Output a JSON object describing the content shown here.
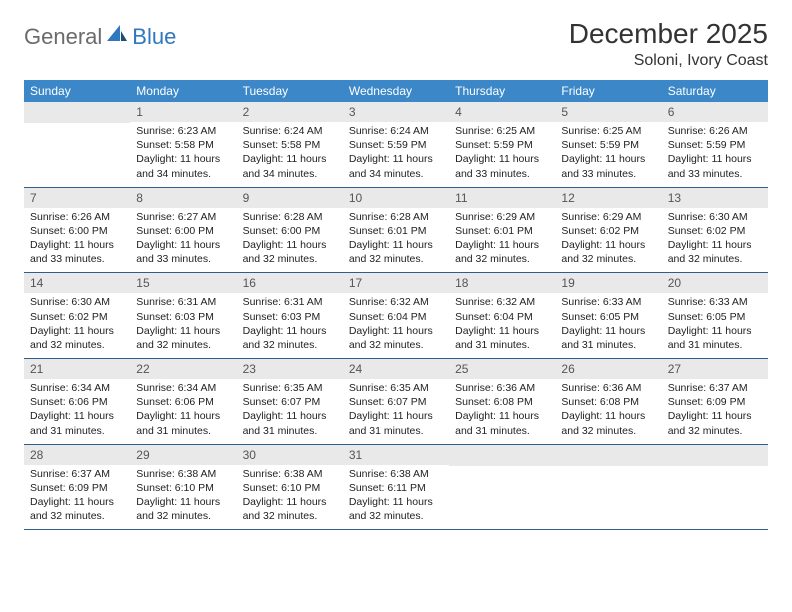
{
  "logo": {
    "part1": "General",
    "part2": "Blue"
  },
  "title": "December 2025",
  "location": "Soloni, Ivory Coast",
  "colors": {
    "header_bg": "#3b87c8",
    "header_text": "#ffffff",
    "daynum_bg": "#e9e9e9",
    "row_border": "#2c5f8d",
    "logo_blue": "#2f78bf"
  },
  "day_headers": [
    "Sunday",
    "Monday",
    "Tuesday",
    "Wednesday",
    "Thursday",
    "Friday",
    "Saturday"
  ],
  "weeks": [
    [
      {
        "n": "",
        "sr": "",
        "ss": "",
        "dl": ""
      },
      {
        "n": "1",
        "sr": "Sunrise: 6:23 AM",
        "ss": "Sunset: 5:58 PM",
        "dl": "Daylight: 11 hours and 34 minutes."
      },
      {
        "n": "2",
        "sr": "Sunrise: 6:24 AM",
        "ss": "Sunset: 5:58 PM",
        "dl": "Daylight: 11 hours and 34 minutes."
      },
      {
        "n": "3",
        "sr": "Sunrise: 6:24 AM",
        "ss": "Sunset: 5:59 PM",
        "dl": "Daylight: 11 hours and 34 minutes."
      },
      {
        "n": "4",
        "sr": "Sunrise: 6:25 AM",
        "ss": "Sunset: 5:59 PM",
        "dl": "Daylight: 11 hours and 33 minutes."
      },
      {
        "n": "5",
        "sr": "Sunrise: 6:25 AM",
        "ss": "Sunset: 5:59 PM",
        "dl": "Daylight: 11 hours and 33 minutes."
      },
      {
        "n": "6",
        "sr": "Sunrise: 6:26 AM",
        "ss": "Sunset: 5:59 PM",
        "dl": "Daylight: 11 hours and 33 minutes."
      }
    ],
    [
      {
        "n": "7",
        "sr": "Sunrise: 6:26 AM",
        "ss": "Sunset: 6:00 PM",
        "dl": "Daylight: 11 hours and 33 minutes."
      },
      {
        "n": "8",
        "sr": "Sunrise: 6:27 AM",
        "ss": "Sunset: 6:00 PM",
        "dl": "Daylight: 11 hours and 33 minutes."
      },
      {
        "n": "9",
        "sr": "Sunrise: 6:28 AM",
        "ss": "Sunset: 6:00 PM",
        "dl": "Daylight: 11 hours and 32 minutes."
      },
      {
        "n": "10",
        "sr": "Sunrise: 6:28 AM",
        "ss": "Sunset: 6:01 PM",
        "dl": "Daylight: 11 hours and 32 minutes."
      },
      {
        "n": "11",
        "sr": "Sunrise: 6:29 AM",
        "ss": "Sunset: 6:01 PM",
        "dl": "Daylight: 11 hours and 32 minutes."
      },
      {
        "n": "12",
        "sr": "Sunrise: 6:29 AM",
        "ss": "Sunset: 6:02 PM",
        "dl": "Daylight: 11 hours and 32 minutes."
      },
      {
        "n": "13",
        "sr": "Sunrise: 6:30 AM",
        "ss": "Sunset: 6:02 PM",
        "dl": "Daylight: 11 hours and 32 minutes."
      }
    ],
    [
      {
        "n": "14",
        "sr": "Sunrise: 6:30 AM",
        "ss": "Sunset: 6:02 PM",
        "dl": "Daylight: 11 hours and 32 minutes."
      },
      {
        "n": "15",
        "sr": "Sunrise: 6:31 AM",
        "ss": "Sunset: 6:03 PM",
        "dl": "Daylight: 11 hours and 32 minutes."
      },
      {
        "n": "16",
        "sr": "Sunrise: 6:31 AM",
        "ss": "Sunset: 6:03 PM",
        "dl": "Daylight: 11 hours and 32 minutes."
      },
      {
        "n": "17",
        "sr": "Sunrise: 6:32 AM",
        "ss": "Sunset: 6:04 PM",
        "dl": "Daylight: 11 hours and 32 minutes."
      },
      {
        "n": "18",
        "sr": "Sunrise: 6:32 AM",
        "ss": "Sunset: 6:04 PM",
        "dl": "Daylight: 11 hours and 31 minutes."
      },
      {
        "n": "19",
        "sr": "Sunrise: 6:33 AM",
        "ss": "Sunset: 6:05 PM",
        "dl": "Daylight: 11 hours and 31 minutes."
      },
      {
        "n": "20",
        "sr": "Sunrise: 6:33 AM",
        "ss": "Sunset: 6:05 PM",
        "dl": "Daylight: 11 hours and 31 minutes."
      }
    ],
    [
      {
        "n": "21",
        "sr": "Sunrise: 6:34 AM",
        "ss": "Sunset: 6:06 PM",
        "dl": "Daylight: 11 hours and 31 minutes."
      },
      {
        "n": "22",
        "sr": "Sunrise: 6:34 AM",
        "ss": "Sunset: 6:06 PM",
        "dl": "Daylight: 11 hours and 31 minutes."
      },
      {
        "n": "23",
        "sr": "Sunrise: 6:35 AM",
        "ss": "Sunset: 6:07 PM",
        "dl": "Daylight: 11 hours and 31 minutes."
      },
      {
        "n": "24",
        "sr": "Sunrise: 6:35 AM",
        "ss": "Sunset: 6:07 PM",
        "dl": "Daylight: 11 hours and 31 minutes."
      },
      {
        "n": "25",
        "sr": "Sunrise: 6:36 AM",
        "ss": "Sunset: 6:08 PM",
        "dl": "Daylight: 11 hours and 31 minutes."
      },
      {
        "n": "26",
        "sr": "Sunrise: 6:36 AM",
        "ss": "Sunset: 6:08 PM",
        "dl": "Daylight: 11 hours and 32 minutes."
      },
      {
        "n": "27",
        "sr": "Sunrise: 6:37 AM",
        "ss": "Sunset: 6:09 PM",
        "dl": "Daylight: 11 hours and 32 minutes."
      }
    ],
    [
      {
        "n": "28",
        "sr": "Sunrise: 6:37 AM",
        "ss": "Sunset: 6:09 PM",
        "dl": "Daylight: 11 hours and 32 minutes."
      },
      {
        "n": "29",
        "sr": "Sunrise: 6:38 AM",
        "ss": "Sunset: 6:10 PM",
        "dl": "Daylight: 11 hours and 32 minutes."
      },
      {
        "n": "30",
        "sr": "Sunrise: 6:38 AM",
        "ss": "Sunset: 6:10 PM",
        "dl": "Daylight: 11 hours and 32 minutes."
      },
      {
        "n": "31",
        "sr": "Sunrise: 6:38 AM",
        "ss": "Sunset: 6:11 PM",
        "dl": "Daylight: 11 hours and 32 minutes."
      },
      {
        "n": "",
        "sr": "",
        "ss": "",
        "dl": ""
      },
      {
        "n": "",
        "sr": "",
        "ss": "",
        "dl": ""
      },
      {
        "n": "",
        "sr": "",
        "ss": "",
        "dl": ""
      }
    ]
  ]
}
